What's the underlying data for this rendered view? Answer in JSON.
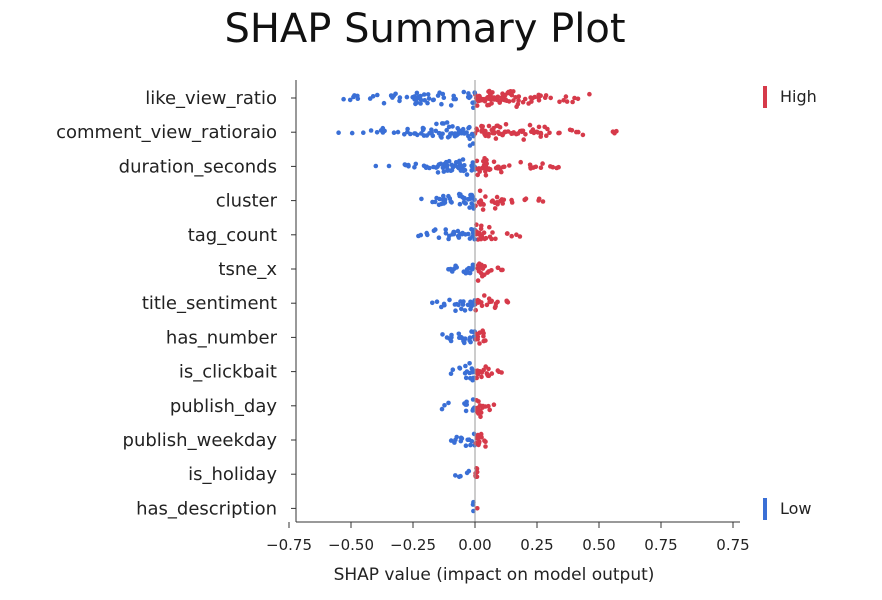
{
  "chart_data": {
    "type": "scatter",
    "title": "SHAP Summary Plot",
    "xlabel": "SHAP value (impact on model output)",
    "xlim": [
      -0.75,
      0.75
    ],
    "xticks": [
      "−0.75",
      "−0.50",
      "−0.25",
      "0.00",
      "0.25",
      "0.50",
      "0.75",
      "0.75"
    ],
    "legend": {
      "high": "High",
      "low": "Low",
      "placement": "right"
    },
    "colors": {
      "high": "#d63a4a",
      "low": "#3a6fd6"
    },
    "features": [
      {
        "name": "like_view_ratio",
        "spread": [
          -0.6,
          0.5
        ],
        "density": 140
      },
      {
        "name": "comment_view_ratioraio",
        "spread": [
          -0.55,
          0.57
        ],
        "density": 140
      },
      {
        "name": "duration_seconds",
        "spread": [
          -0.4,
          0.38
        ],
        "density": 100
      },
      {
        "name": "cluster",
        "spread": [
          -0.23,
          0.28
        ],
        "density": 70
      },
      {
        "name": "tag_count",
        "spread": [
          -0.23,
          0.19
        ],
        "density": 55
      },
      {
        "name": "tsne_x",
        "spread": [
          -0.12,
          0.12
        ],
        "density": 40
      },
      {
        "name": "title_sentiment",
        "spread": [
          -0.19,
          0.15
        ],
        "density": 45
      },
      {
        "name": "has_number",
        "spread": [
          -0.15,
          0.05
        ],
        "density": 35
      },
      {
        "name": "is_clickbait",
        "spread": [
          -0.1,
          0.11
        ],
        "density": 35
      },
      {
        "name": "publish_day",
        "spread": [
          -0.14,
          0.08
        ],
        "density": 30
      },
      {
        "name": "publish_weekday",
        "spread": [
          -0.11,
          0.06
        ],
        "density": 30
      },
      {
        "name": "is_holiday",
        "spread": [
          -0.09,
          0.01
        ],
        "density": 12
      },
      {
        "name": "has_description",
        "spread": [
          -0.01,
          0.01
        ],
        "density": 4
      }
    ]
  }
}
